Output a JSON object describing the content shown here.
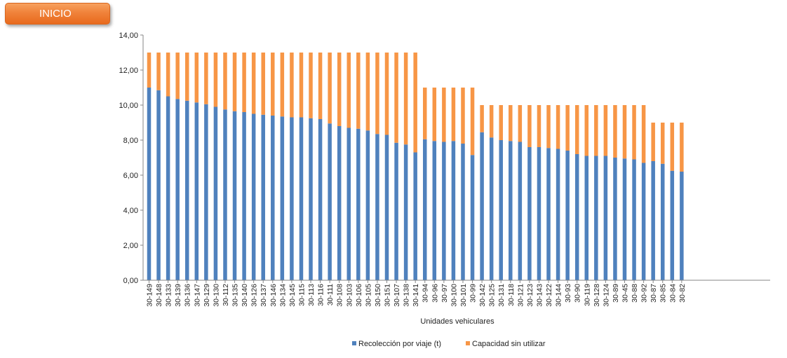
{
  "button": {
    "label": "INICIO"
  },
  "chart_data": {
    "type": "bar",
    "stacked": true,
    "title": "",
    "xlabel": "Unidades vehiculares",
    "ylabel": "",
    "ylim": [
      0,
      14
    ],
    "yticks": [
      "0,00",
      "2,00",
      "4,00",
      "6,00",
      "8,00",
      "10,00",
      "12,00",
      "14,00"
    ],
    "grid": false,
    "legend_position": "bottom",
    "categories": [
      "30-149",
      "30-148",
      "30-133",
      "30-139",
      "30-136",
      "30-147",
      "30-129",
      "30-130",
      "30-112",
      "30-135",
      "30-140",
      "30-126",
      "30-137",
      "30-146",
      "30-134",
      "30-145",
      "30-115",
      "30-113",
      "30-116",
      "30-111",
      "30-108",
      "30-103",
      "30-106",
      "30-105",
      "30-150",
      "30-151",
      "30-107",
      "30-138",
      "30-141",
      "30-94",
      "30-96",
      "30-97",
      "30-100",
      "30-101",
      "30-99",
      "30-142",
      "30-125",
      "30-131",
      "30-118",
      "30-121",
      "30-123",
      "30-143",
      "30-122",
      "30-144",
      "30-93",
      "30-90",
      "30-119",
      "30-128",
      "30-124",
      "30-89",
      "30-45",
      "30-88",
      "30-92",
      "30-87",
      "30-85",
      "30-84",
      "30-82"
    ],
    "series": [
      {
        "name": "Recolección por viaje (t)",
        "color": "#4f81bd",
        "values": [
          11.0,
          10.85,
          10.5,
          10.35,
          10.25,
          10.15,
          10.05,
          9.9,
          9.75,
          9.65,
          9.6,
          9.5,
          9.45,
          9.4,
          9.35,
          9.3,
          9.3,
          9.25,
          9.2,
          8.95,
          8.8,
          8.7,
          8.65,
          8.55,
          8.35,
          8.3,
          7.85,
          7.75,
          7.3,
          8.05,
          7.95,
          7.9,
          7.95,
          7.8,
          7.15,
          8.45,
          8.15,
          8.0,
          7.95,
          7.9,
          7.6,
          7.6,
          7.55,
          7.5,
          7.4,
          7.2,
          7.1,
          7.1,
          7.1,
          7.0,
          6.95,
          6.9,
          6.7,
          6.8,
          6.65,
          6.25,
          6.2
        ]
      },
      {
        "name": "Capacidad sin utilizar",
        "color": "#f79646",
        "values": [
          2.0,
          2.15,
          2.5,
          2.65,
          2.75,
          2.85,
          2.95,
          3.1,
          3.25,
          3.35,
          3.4,
          3.5,
          3.55,
          3.6,
          3.65,
          3.7,
          3.7,
          3.75,
          3.8,
          4.05,
          4.2,
          4.3,
          4.35,
          4.45,
          4.65,
          4.7,
          5.15,
          5.25,
          5.7,
          2.95,
          3.05,
          3.1,
          3.05,
          3.2,
          3.85,
          1.55,
          1.85,
          2.0,
          2.05,
          2.1,
          2.4,
          2.4,
          2.45,
          2.5,
          2.6,
          2.8,
          2.9,
          2.9,
          2.9,
          3.0,
          3.05,
          3.1,
          3.3,
          2.2,
          2.35,
          2.75,
          2.8
        ]
      }
    ]
  }
}
